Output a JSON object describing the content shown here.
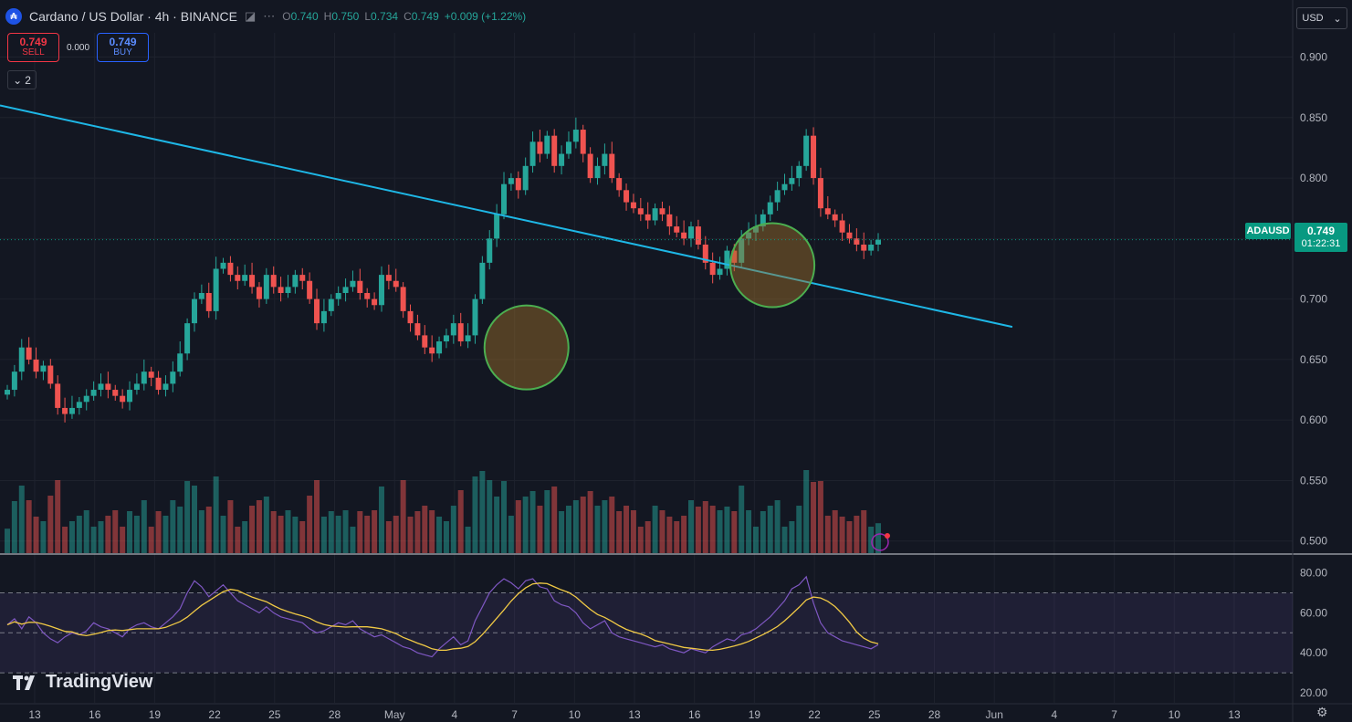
{
  "header": {
    "symbol_title": "Cardano / US Dollar · 4h · BINANCE",
    "coin_icon": "cardano-icon",
    "ohlc": {
      "o_label": "O",
      "o": "0.740",
      "h_label": "H",
      "h": "0.750",
      "l_label": "L",
      "l": "0.734",
      "c_label": "C",
      "c": "0.749",
      "change": "+0.009 (+1.22%)"
    }
  },
  "trade": {
    "sell_price": "0.749",
    "sell_label": "SELL",
    "spread": "0.000",
    "buy_price": "0.749",
    "buy_label": "BUY"
  },
  "collapse_count": "2",
  "currency": "USD",
  "price_axis": [
    "0.900",
    "0.850",
    "0.800",
    "0.750",
    "0.700",
    "0.650",
    "0.600",
    "0.550",
    "0.500"
  ],
  "rsi_axis": [
    "80.00",
    "60.00",
    "40.00",
    "20.00"
  ],
  "last_price": {
    "symbol": "ADAUSD",
    "price": "0.749",
    "countdown": "01:22:31"
  },
  "time_axis": [
    "13",
    "16",
    "19",
    "22",
    "25",
    "28",
    "May",
    "4",
    "7",
    "10",
    "13",
    "16",
    "19",
    "22",
    "25",
    "28",
    "Jun",
    "4",
    "7",
    "10",
    "13"
  ],
  "branding": "TradingView",
  "colors": {
    "up": "#26a69a",
    "down": "#ef5350",
    "trendline": "#1eb7e6",
    "rsi": "#7e57c2",
    "rsi_ma": "#f0c945"
  },
  "chart_data": {
    "type": "candlestick",
    "interval": "4h",
    "ylim": [
      0.49,
      0.92
    ],
    "rsi_ylim": [
      15,
      88
    ],
    "rsi_levels": [
      70,
      50,
      30
    ],
    "trendline": {
      "from": {
        "date": "Apr 11",
        "price": 0.86
      },
      "to": {
        "date": "Jun 1",
        "price": 0.677
      }
    },
    "highlight_circles": [
      {
        "date": "May 6",
        "price": 0.66
      },
      {
        "date": "May 19",
        "price": 0.728
      }
    ],
    "closes": [
      0.625,
      0.64,
      0.66,
      0.65,
      0.64,
      0.645,
      0.63,
      0.61,
      0.605,
      0.61,
      0.615,
      0.62,
      0.625,
      0.63,
      0.625,
      0.62,
      0.615,
      0.625,
      0.63,
      0.64,
      0.635,
      0.625,
      0.63,
      0.64,
      0.655,
      0.68,
      0.7,
      0.705,
      0.69,
      0.725,
      0.73,
      0.72,
      0.715,
      0.72,
      0.71,
      0.7,
      0.72,
      0.71,
      0.705,
      0.71,
      0.72,
      0.715,
      0.7,
      0.68,
      0.69,
      0.7,
      0.705,
      0.71,
      0.715,
      0.705,
      0.7,
      0.695,
      0.72,
      0.715,
      0.71,
      0.69,
      0.68,
      0.67,
      0.66,
      0.655,
      0.665,
      0.67,
      0.68,
      0.665,
      0.67,
      0.7,
      0.73,
      0.75,
      0.77,
      0.795,
      0.8,
      0.79,
      0.81,
      0.83,
      0.82,
      0.835,
      0.81,
      0.82,
      0.83,
      0.84,
      0.82,
      0.8,
      0.81,
      0.82,
      0.8,
      0.79,
      0.78,
      0.775,
      0.77,
      0.765,
      0.775,
      0.77,
      0.76,
      0.755,
      0.75,
      0.76,
      0.745,
      0.73,
      0.72,
      0.725,
      0.74,
      0.73,
      0.75,
      0.755,
      0.76,
      0.77,
      0.78,
      0.79,
      0.795,
      0.8,
      0.81,
      0.835,
      0.8,
      0.775,
      0.77,
      0.765,
      0.755,
      0.75,
      0.745,
      0.74,
      0.745,
      0.749
    ],
    "rsi": [
      54,
      57,
      52,
      58,
      55,
      50,
      47,
      45,
      48,
      50,
      49,
      51,
      55,
      53,
      52,
      50,
      48,
      52,
      54,
      55,
      53,
      52,
      55,
      58,
      62,
      70,
      76,
      73,
      68,
      71,
      74,
      70,
      66,
      64,
      62,
      60,
      63,
      60,
      58,
      57,
      56,
      55,
      52,
      50,
      51,
      53,
      55,
      54,
      56,
      52,
      50,
      48,
      49,
      47,
      45,
      43,
      42,
      40,
      39,
      38,
      42,
      45,
      48,
      44,
      46,
      56,
      63,
      70,
      74,
      77,
      75,
      72,
      76,
      77,
      73,
      72,
      66,
      64,
      63,
      60,
      55,
      52,
      54,
      56,
      50,
      48,
      47,
      46,
      45,
      44,
      43,
      44,
      42,
      41,
      40,
      42,
      41,
      40,
      43,
      45,
      47,
      46,
      49,
      50,
      52,
      55,
      58,
      62,
      66,
      72,
      74,
      78,
      65,
      55,
      50,
      48,
      46,
      45,
      44,
      43,
      42,
      44
    ]
  }
}
